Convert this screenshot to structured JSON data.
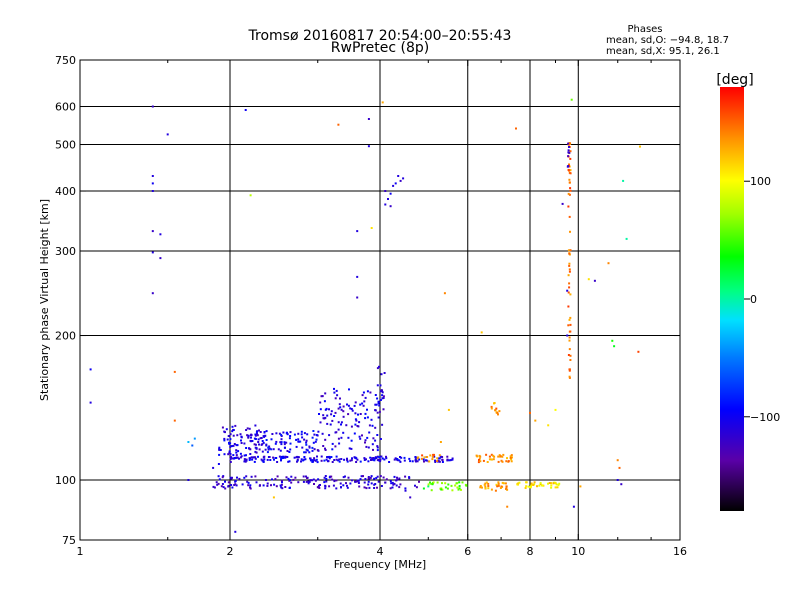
{
  "header": {
    "title": "Tromsø 20160817 20:54:00–20:55:43",
    "subtitle": "RwPretec (8p)",
    "stats_heading": "Phases",
    "stats_line1": "mean, sd,O: −94.8, 18.7",
    "stats_line2": "mean, sd,X:  95.1, 26.1"
  },
  "chart_data": {
    "type": "scatter",
    "xlabel": "Frequency [MHz]",
    "ylabel": "Stationary phase Virtual Height [km]",
    "xscale": "log",
    "yscale": "log",
    "xlim": [
      1,
      16
    ],
    "ylim": [
      75,
      750
    ],
    "x_ticks": [
      1,
      2,
      4,
      6,
      8,
      10,
      16
    ],
    "y_ticks": [
      75,
      100,
      200,
      300,
      400,
      500,
      600,
      750
    ],
    "x_gridlines": [
      2,
      4,
      6,
      8,
      10
    ],
    "y_gridlines": [
      100,
      200,
      300,
      400,
      500,
      600
    ],
    "colorbar": {
      "label": "[deg]",
      "range": [
        -180,
        180
      ],
      "ticks": [
        100,
        0,
        -100
      ]
    },
    "points": [
      [
        1.05,
        170,
        -100
      ],
      [
        1.05,
        145,
        -110
      ],
      [
        1.4,
        600,
        -120
      ],
      [
        1.4,
        430,
        -110
      ],
      [
        1.4,
        415,
        -100
      ],
      [
        1.4,
        400,
        -110
      ],
      [
        1.4,
        330,
        -120
      ],
      [
        1.4,
        298,
        -110
      ],
      [
        1.4,
        245,
        -120
      ],
      [
        1.45,
        325,
        -110
      ],
      [
        1.45,
        290,
        -120
      ],
      [
        1.5,
        525,
        -110
      ],
      [
        1.55,
        168,
        150
      ],
      [
        1.55,
        133,
        150
      ],
      [
        1.65,
        120,
        -30
      ],
      [
        1.68,
        118,
        -60
      ],
      [
        1.7,
        122,
        -40
      ],
      [
        1.65,
        100,
        -110
      ],
      [
        1.85,
        106,
        -110
      ],
      [
        1.9,
        108,
        -100
      ],
      [
        2.05,
        78,
        -110
      ],
      [
        2.15,
        590,
        -100
      ],
      [
        2.2,
        392,
        80
      ],
      [
        2.45,
        92,
        120
      ],
      [
        3.3,
        550,
        150
      ],
      [
        3.6,
        330,
        -110
      ],
      [
        3.6,
        265,
        -110
      ],
      [
        3.6,
        240,
        -120
      ],
      [
        3.8,
        565,
        -120
      ],
      [
        3.8,
        496,
        -110
      ],
      [
        3.85,
        335,
        110
      ],
      [
        4.05,
        612,
        130
      ],
      [
        4.1,
        400,
        -120
      ],
      [
        4.15,
        385,
        -110
      ],
      [
        4.2,
        395,
        -100
      ],
      [
        4.25,
        410,
        -110
      ],
      [
        4.3,
        415,
        -100
      ],
      [
        4.35,
        430,
        -110
      ],
      [
        4.4,
        420,
        -120
      ],
      [
        4.45,
        425,
        -110
      ],
      [
        4.1,
        375,
        -110
      ],
      [
        4.2,
        372,
        -120
      ],
      [
        4.5,
        95,
        -110
      ],
      [
        4.6,
        92,
        -120
      ],
      [
        4.9,
        96,
        30
      ],
      [
        5.0,
        97,
        10
      ],
      [
        5.1,
        98,
        40
      ],
      [
        5.4,
        245,
        140
      ],
      [
        5.5,
        140,
        120
      ],
      [
        5.3,
        120,
        130
      ],
      [
        6.4,
        203,
        120
      ],
      [
        6.7,
        142,
        150
      ],
      [
        6.9,
        137,
        140
      ],
      [
        7.5,
        540,
        150
      ],
      [
        8.0,
        138,
        150
      ],
      [
        8.2,
        133,
        130
      ],
      [
        8.7,
        130,
        110
      ],
      [
        9.0,
        140,
        100
      ],
      [
        9.3,
        376,
        -120
      ],
      [
        9.5,
        200,
        -110
      ],
      [
        9.5,
        248,
        -110
      ],
      [
        9.7,
        620,
        60
      ],
      [
        9.6,
        170,
        160
      ],
      [
        10.1,
        97,
        130
      ],
      [
        10.5,
        262,
        110
      ],
      [
        10.8,
        260,
        -120
      ],
      [
        11.5,
        283,
        140
      ],
      [
        11.8,
        190,
        30
      ],
      [
        11.7,
        195,
        40
      ],
      [
        12.3,
        420,
        0
      ],
      [
        12.5,
        318,
        0
      ],
      [
        12.0,
        110,
        140
      ],
      [
        12.1,
        106,
        150
      ],
      [
        12.0,
        100,
        -110
      ],
      [
        12.2,
        98,
        -120
      ],
      [
        13.2,
        185,
        160
      ],
      [
        13.3,
        495,
        120
      ],
      [
        9.8,
        88,
        -110
      ],
      [
        7.2,
        88,
        140
      ]
    ],
    "clusters": [
      {
        "x": [
          1.9,
          2.35
        ],
        "y": [
          111,
          130
        ],
        "phase": -110,
        "n": 110
      },
      {
        "x": [
          2.35,
          3.0
        ],
        "y": [
          114,
          127
        ],
        "phase": -100,
        "n": 80
      },
      {
        "x": [
          3.0,
          4.05
        ],
        "y": [
          115,
          155
        ],
        "phase": -110,
        "n": 130
      },
      {
        "x": [
          3.95,
          4.1
        ],
        "y": [
          130,
          175
        ],
        "phase": -115,
        "n": 18
      },
      {
        "x": [
          2.0,
          4.6
        ],
        "y": [
          109,
          112
        ],
        "phase": -105,
        "n": 160
      },
      {
        "x": [
          4.6,
          5.6
        ],
        "y": [
          109,
          112
        ],
        "phase": -110,
        "n": 40
      },
      {
        "x": [
          6.2,
          7.4
        ],
        "y": [
          109,
          113
        ],
        "phase": 140,
        "n": 40
      },
      {
        "x": [
          1.85,
          4.8
        ],
        "y": [
          96,
          102
        ],
        "phase": -115,
        "n": 180
      },
      {
        "x": [
          5.0,
          6.0
        ],
        "y": [
          95,
          99
        ],
        "phase": 60,
        "n": 30
      },
      {
        "x": [
          6.3,
          7.2
        ],
        "y": [
          95,
          99
        ],
        "phase": 130,
        "n": 30
      },
      {
        "x": [
          7.4,
          9.2
        ],
        "y": [
          96,
          99
        ],
        "phase": 110,
        "n": 40
      },
      {
        "x": [
          4.7,
          5.3
        ],
        "y": [
          109,
          113
        ],
        "phase": 140,
        "n": 15
      },
      {
        "x": [
          9.55,
          9.65
        ],
        "y": [
          160,
          520
        ],
        "phase": 145,
        "n": 60
      },
      {
        "x": [
          9.5,
          9.6
        ],
        "y": [
          440,
          510
        ],
        "phase": -120,
        "n": 8
      },
      {
        "x": [
          6.7,
          6.95
        ],
        "y": [
          138,
          145
        ],
        "phase": 140,
        "n": 10
      }
    ]
  }
}
